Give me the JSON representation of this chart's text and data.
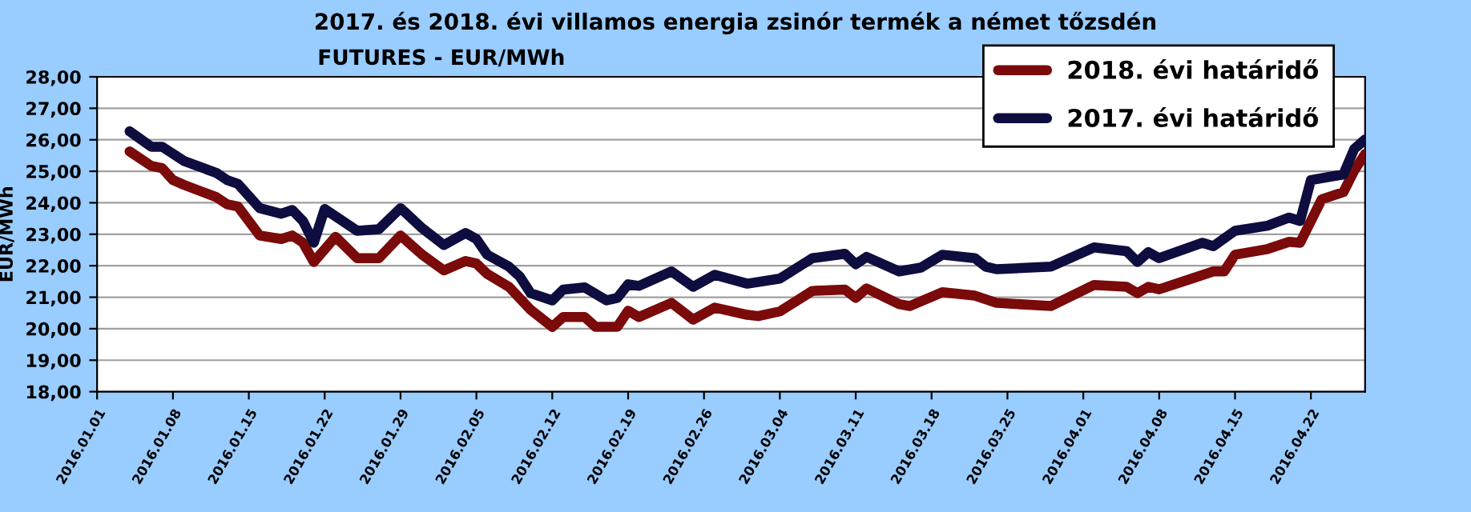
{
  "chart_data": {
    "type": "line",
    "title": "2017. és 2018. évi villamos energia zsinór termék a német tőzsdén",
    "subtitle": "FUTURES - EUR/MWh",
    "ylabel": "EUR/MWh",
    "xlim": [
      "2016-01-01",
      "2016-04-27"
    ],
    "xticks": [
      {
        "value": "2016-01-01",
        "label": "2016.01.01"
      },
      {
        "value": "2016-01-08",
        "label": "2016.01.08"
      },
      {
        "value": "2016-01-15",
        "label": "2016.01.15"
      },
      {
        "value": "2016-01-22",
        "label": "2016.01.22"
      },
      {
        "value": "2016-01-29",
        "label": "2016.01.29"
      },
      {
        "value": "2016-02-05",
        "label": "2016.02.05"
      },
      {
        "value": "2016-02-12",
        "label": "2016.02.12"
      },
      {
        "value": "2016-02-19",
        "label": "2016.02.19"
      },
      {
        "value": "2016-02-26",
        "label": "2016.02.26"
      },
      {
        "value": "2016-03-04",
        "label": "2016.03.04"
      },
      {
        "value": "2016-03-11",
        "label": "2016.03.11"
      },
      {
        "value": "2016-03-18",
        "label": "2016.03.18"
      },
      {
        "value": "2016-03-25",
        "label": "2016.03.25"
      },
      {
        "value": "2016-04-01",
        "label": "2016.04.01"
      },
      {
        "value": "2016-04-08",
        "label": "2016.04.08"
      },
      {
        "value": "2016-04-15",
        "label": "2016.04.15"
      },
      {
        "value": "2016-04-22",
        "label": "2016.04.22"
      }
    ],
    "ylim": [
      18,
      28
    ],
    "yticks": [
      {
        "value": 18,
        "label": "18,00"
      },
      {
        "value": 19,
        "label": "19,00"
      },
      {
        "value": 20,
        "label": "20,00"
      },
      {
        "value": 21,
        "label": "21,00"
      },
      {
        "value": 22,
        "label": "22,00"
      },
      {
        "value": 23,
        "label": "23,00"
      },
      {
        "value": 24,
        "label": "24,00"
      },
      {
        "value": 25,
        "label": "25,00"
      },
      {
        "value": 26,
        "label": "26,00"
      },
      {
        "value": 27,
        "label": "27,00"
      },
      {
        "value": 28,
        "label": "28,00"
      }
    ],
    "grid": "y",
    "legend": "top right",
    "marker": "none",
    "line_style": "solid",
    "series": [
      {
        "name": "2018. évi határidő",
        "color": "#7b0a0a",
        "x": [
          "2016-01-04",
          "2016-01-06",
          "2016-01-07",
          "2016-01-08",
          "2016-01-09",
          "2016-01-12",
          "2016-01-13",
          "2016-01-14",
          "2016-01-16",
          "2016-01-18",
          "2016-01-19",
          "2016-01-20",
          "2016-01-21",
          "2016-01-23",
          "2016-01-25",
          "2016-01-27",
          "2016-01-29",
          "2016-01-31",
          "2016-02-02",
          "2016-02-04",
          "2016-02-05",
          "2016-02-06",
          "2016-02-08",
          "2016-02-10",
          "2016-02-12",
          "2016-02-13",
          "2016-02-15",
          "2016-02-16",
          "2016-02-18",
          "2016-02-19",
          "2016-02-20",
          "2016-02-23",
          "2016-02-25",
          "2016-02-27",
          "2016-03-01",
          "2016-03-02",
          "2016-03-04",
          "2016-03-07",
          "2016-03-10",
          "2016-03-11",
          "2016-03-12",
          "2016-03-15",
          "2016-03-16",
          "2016-03-19",
          "2016-03-22",
          "2016-03-24",
          "2016-03-29",
          "2016-04-02",
          "2016-04-05",
          "2016-04-06",
          "2016-04-07",
          "2016-04-08",
          "2016-04-11",
          "2016-04-13",
          "2016-04-14",
          "2016-04-15",
          "2016-04-18",
          "2016-04-20",
          "2016-04-21",
          "2016-04-23",
          "2016-04-25",
          "2016-04-26",
          "2016-04-27"
        ],
        "values": [
          25.63,
          25.17,
          25.1,
          24.72,
          24.57,
          24.18,
          23.95,
          23.88,
          22.96,
          22.85,
          22.96,
          22.73,
          22.12,
          22.92,
          22.24,
          22.24,
          22.96,
          22.35,
          21.85,
          22.15,
          22.07,
          21.74,
          21.33,
          20.6,
          20.06,
          20.37,
          20.37,
          20.06,
          20.06,
          20.57,
          20.37,
          20.82,
          20.29,
          20.67,
          20.44,
          20.4,
          20.55,
          21.2,
          21.24,
          20.98,
          21.28,
          20.78,
          20.72,
          21.16,
          21.05,
          20.82,
          20.72,
          21.39,
          21.33,
          21.13,
          21.33,
          21.25,
          21.59,
          21.82,
          21.82,
          22.35,
          22.53,
          22.76,
          22.73,
          24.11,
          24.34,
          25.02,
          25.55
        ]
      },
      {
        "name": "2017. évi határidő",
        "color": "#0d0d40",
        "x": [
          "2016-01-04",
          "2016-01-06",
          "2016-01-07",
          "2016-01-09",
          "2016-01-10",
          "2016-01-12",
          "2016-01-13",
          "2016-01-14",
          "2016-01-16",
          "2016-01-18",
          "2016-01-19",
          "2016-01-20",
          "2016-01-21",
          "2016-01-22",
          "2016-01-25",
          "2016-01-27",
          "2016-01-29",
          "2016-01-31",
          "2016-02-02",
          "2016-02-04",
          "2016-02-05",
          "2016-02-06",
          "2016-02-08",
          "2016-02-09",
          "2016-02-10",
          "2016-02-12",
          "2016-02-13",
          "2016-02-15",
          "2016-02-17",
          "2016-02-18",
          "2016-02-19",
          "2016-02-20",
          "2016-02-23",
          "2016-02-25",
          "2016-02-27",
          "2016-03-01",
          "2016-03-04",
          "2016-03-07",
          "2016-03-10",
          "2016-03-11",
          "2016-03-12",
          "2016-03-15",
          "2016-03-17",
          "2016-03-19",
          "2016-03-22",
          "2016-03-23",
          "2016-03-24",
          "2016-03-29",
          "2016-04-02",
          "2016-04-05",
          "2016-04-06",
          "2016-04-07",
          "2016-04-08",
          "2016-04-12",
          "2016-04-13",
          "2016-04-15",
          "2016-04-18",
          "2016-04-20",
          "2016-04-21",
          "2016-04-22",
          "2016-04-25",
          "2016-04-26",
          "2016-04-27"
        ],
        "values": [
          26.27,
          25.78,
          25.78,
          25.33,
          25.2,
          24.95,
          24.72,
          24.6,
          23.83,
          23.65,
          23.77,
          23.42,
          22.73,
          23.8,
          23.11,
          23.16,
          23.83,
          23.19,
          22.66,
          23.04,
          22.85,
          22.35,
          21.97,
          21.66,
          21.13,
          20.9,
          21.24,
          21.31,
          20.9,
          20.98,
          21.41,
          21.36,
          21.82,
          21.33,
          21.71,
          21.43,
          21.59,
          22.24,
          22.38,
          22.05,
          22.28,
          21.82,
          21.94,
          22.35,
          22.24,
          21.97,
          21.89,
          21.97,
          22.58,
          22.46,
          22.12,
          22.43,
          22.24,
          22.73,
          22.62,
          23.11,
          23.27,
          23.53,
          23.42,
          24.72,
          24.9,
          25.71,
          26.01
        ]
      }
    ]
  }
}
